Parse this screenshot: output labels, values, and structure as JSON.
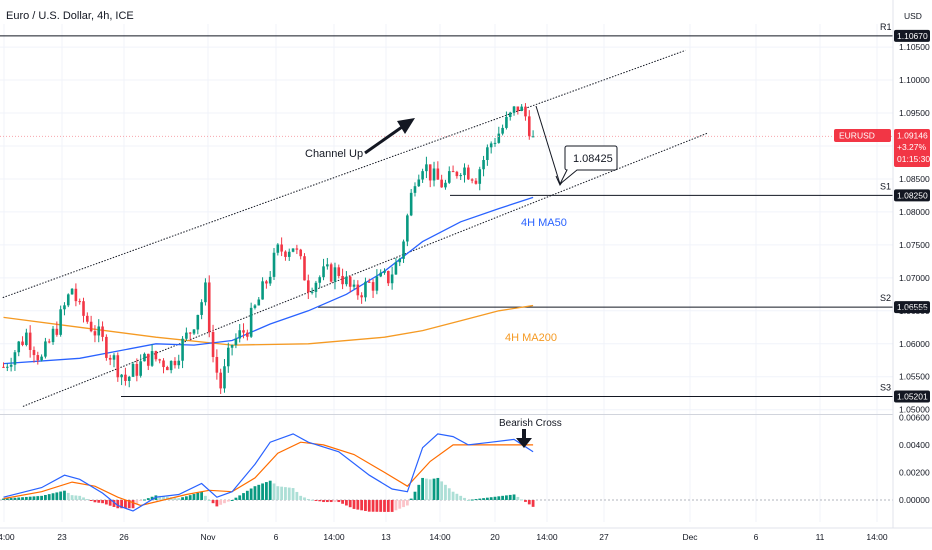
{
  "header": {
    "title": "Euro / U.S. Dollar, 4h, ICE",
    "currency": "USD"
  },
  "price_axis": {
    "ticks": [
      "1.10500",
      "1.10000",
      "1.09500",
      "1.09000",
      "1.08500",
      "1.08000",
      "1.07500",
      "1.07000",
      "1.06500",
      "1.06000",
      "1.05500",
      "1.05000"
    ]
  },
  "osc_axis": {
    "ticks": [
      "0.00600",
      "0.00400",
      "0.00200",
      "0.00000"
    ]
  },
  "x_axis": {
    "ticks": [
      "14:00",
      "23",
      "26",
      "Nov",
      "6",
      "14:00",
      "13",
      "14:00",
      "20",
      "14:00",
      "27",
      "Dec",
      "6",
      "11",
      "14:00"
    ]
  },
  "levels": [
    {
      "name": "R1",
      "value_label": "1.10670",
      "value": 1.1067
    },
    {
      "name": "S1",
      "value_label": "1.08250",
      "value": 1.0825
    },
    {
      "name": "S2",
      "value_label": "1.06555",
      "value": 1.06555
    },
    {
      "name": "S3",
      "value_label": "1.05201",
      "value": 1.05201
    }
  ],
  "current_price": {
    "symbol": "EURUSD",
    "price": "1.09146",
    "change": "+3.27%",
    "countdown": "01:15:30",
    "color": "#f23645"
  },
  "annotations": {
    "channel": "Channel Up",
    "target": "1.08425",
    "ma50": "4H MA50",
    "ma200": "4H MA200",
    "cross": "Bearish Cross"
  },
  "colors": {
    "up": "#089981",
    "down": "#f23645",
    "ma50": "#2962ff",
    "ma200": "#f59a23",
    "macd": "#2962ff",
    "signal": "#ff6d00"
  },
  "chart_data": {
    "type": "candlestick",
    "title": "Euro / U.S. Dollar, 4h, ICE",
    "ylim": [
      1.0495,
      1.1085
    ],
    "y_ticks": [
      1.105,
      1.1,
      1.095,
      1.09,
      1.085,
      1.08,
      1.075,
      1.07,
      1.065,
      1.06,
      1.055,
      1.05
    ],
    "x_tick_labels": [
      "14:00",
      "23",
      "26",
      "Nov",
      "6",
      "14:00",
      "13",
      "14:00",
      "20",
      "14:00",
      "27",
      "Dec",
      "6",
      "11",
      "14:00"
    ],
    "anchors": [
      {
        "i": 0,
        "p": 1.0565
      },
      {
        "i": 6,
        "p": 1.0615
      },
      {
        "i": 10,
        "p": 1.0575
      },
      {
        "i": 15,
        "p": 1.064
      },
      {
        "i": 18,
        "p": 1.0685
      },
      {
        "i": 20,
        "p": 1.065
      },
      {
        "i": 24,
        "p": 1.062
      },
      {
        "i": 28,
        "p": 1.0585
      },
      {
        "i": 32,
        "p": 1.0545
      },
      {
        "i": 38,
        "p": 1.058
      },
      {
        "i": 44,
        "p": 1.057
      },
      {
        "i": 49,
        "p": 1.062
      },
      {
        "i": 53,
        "p": 1.068
      },
      {
        "i": 55,
        "p": 1.058
      },
      {
        "i": 57,
        "p": 1.0535
      },
      {
        "i": 60,
        "p": 1.06
      },
      {
        "i": 64,
        "p": 1.0625
      },
      {
        "i": 68,
        "p": 1.068
      },
      {
        "i": 72,
        "p": 1.074
      },
      {
        "i": 76,
        "p": 1.075
      },
      {
        "i": 80,
        "p": 1.069
      },
      {
        "i": 84,
        "p": 1.0705
      },
      {
        "i": 88,
        "p": 1.071
      },
      {
        "i": 92,
        "p": 1.0675
      },
      {
        "i": 96,
        "p": 1.069
      },
      {
        "i": 101,
        "p": 1.07
      },
      {
        "i": 104,
        "p": 1.073
      },
      {
        "i": 108,
        "p": 1.0855
      },
      {
        "i": 110,
        "p": 1.0875
      },
      {
        "i": 113,
        "p": 1.085
      },
      {
        "i": 116,
        "p": 1.084
      },
      {
        "i": 120,
        "p": 1.087
      },
      {
        "i": 124,
        "p": 1.0855
      },
      {
        "i": 128,
        "p": 1.0905
      },
      {
        "i": 132,
        "p": 1.0935
      },
      {
        "i": 135,
        "p": 1.096
      },
      {
        "i": 137,
        "p": 1.0945
      },
      {
        "i": 139,
        "p": 1.0915
      }
    ],
    "ma50": [
      [
        0,
        1.057
      ],
      [
        20,
        1.0578
      ],
      [
        40,
        1.06
      ],
      [
        50,
        1.0598
      ],
      [
        60,
        1.0605
      ],
      [
        70,
        1.063
      ],
      [
        80,
        1.065
      ],
      [
        90,
        1.0675
      ],
      [
        100,
        1.071
      ],
      [
        110,
        1.0755
      ],
      [
        120,
        1.0785
      ],
      [
        130,
        1.0805
      ],
      [
        139,
        1.0822
      ]
    ],
    "ma200": [
      [
        0,
        1.064
      ],
      [
        20,
        1.0625
      ],
      [
        40,
        1.061
      ],
      [
        60,
        1.0598
      ],
      [
        80,
        1.06
      ],
      [
        100,
        1.061
      ],
      [
        110,
        1.062
      ],
      [
        120,
        1.0635
      ],
      [
        130,
        1.065
      ],
      [
        139,
        1.0658
      ]
    ],
    "channel_upper": [
      [
        -0.2,
        1.067
      ],
      [
        179,
        1.1045
      ]
    ],
    "channel_lower": [
      [
        5.1,
        1.0505
      ],
      [
        185,
        1.092
      ]
    ],
    "bars_total": 139,
    "oscillator": {
      "ylim": [
        -0.0016,
        0.0061
      ],
      "ticks": [
        0.006,
        0.004,
        0.002,
        0.0
      ],
      "macd": [
        [
          0,
          0.0002
        ],
        [
          10,
          0.0009
        ],
        [
          16,
          0.0018
        ],
        [
          20,
          0.0015
        ],
        [
          26,
          0.0005
        ],
        [
          30,
          -0.0004
        ],
        [
          34,
          -0.0008
        ],
        [
          40,
          0.0002
        ],
        [
          46,
          0.0004
        ],
        [
          52,
          0.0012
        ],
        [
          56,
          0.0002
        ],
        [
          60,
          0.0006
        ],
        [
          66,
          0.0026
        ],
        [
          70,
          0.0042
        ],
        [
          76,
          0.0048
        ],
        [
          80,
          0.0042
        ],
        [
          88,
          0.0035
        ],
        [
          96,
          0.0018
        ],
        [
          102,
          0.0008
        ],
        [
          106,
          0.0006
        ],
        [
          110,
          0.0038
        ],
        [
          114,
          0.0048
        ],
        [
          118,
          0.0046
        ],
        [
          122,
          0.004
        ],
        [
          128,
          0.0042
        ],
        [
          134,
          0.0044
        ],
        [
          139,
          0.0035
        ]
      ],
      "signal": [
        [
          0,
          0.0001
        ],
        [
          10,
          0.0006
        ],
        [
          18,
          0.0013
        ],
        [
          24,
          0.001
        ],
        [
          30,
          0.0002
        ],
        [
          36,
          -0.0004
        ],
        [
          42,
          0.0
        ],
        [
          48,
          0.0004
        ],
        [
          54,
          0.0007
        ],
        [
          60,
          0.0006
        ],
        [
          66,
          0.0016
        ],
        [
          72,
          0.0034
        ],
        [
          78,
          0.0042
        ],
        [
          84,
          0.004
        ],
        [
          92,
          0.0033
        ],
        [
          100,
          0.002
        ],
        [
          106,
          0.001
        ],
        [
          112,
          0.0028
        ],
        [
          118,
          0.004
        ],
        [
          124,
          0.004
        ],
        [
          132,
          0.004
        ],
        [
          139,
          0.004
        ]
      ]
    }
  }
}
